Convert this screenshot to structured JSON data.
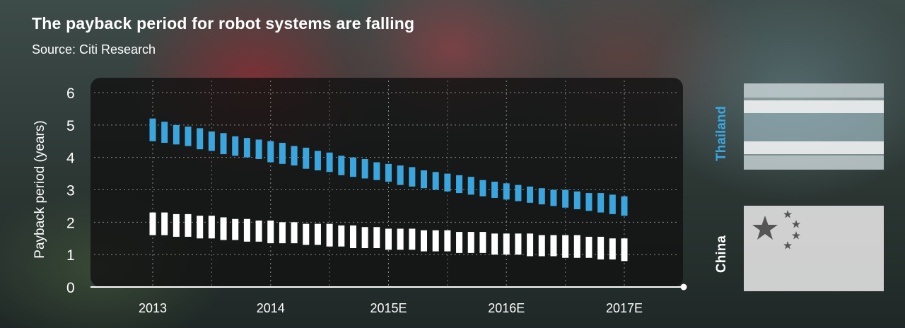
{
  "header": {
    "title": "The payback period for robot systems are falling",
    "subtitle": "Source: Citi Research"
  },
  "legend": {
    "thailand": "Thailand",
    "china": "China"
  },
  "colors": {
    "thailand": "#3aa6e0",
    "china": "#ffffff",
    "panel": "#121212"
  },
  "chart_data": {
    "type": "bar",
    "title": "The payback period for robot systems are falling",
    "ylabel": "Payback period (years)",
    "xlabel": "",
    "ylim": [
      0,
      6
    ],
    "yticks": [
      0,
      1,
      2,
      3,
      4,
      5,
      6
    ],
    "grid": true,
    "x_tick_labels": [
      "2013",
      "2014",
      "2015E",
      "2016E",
      "2017E"
    ],
    "bars_per_year": 10,
    "series": [
      {
        "name": "Thailand",
        "start": [
          5.2,
          5.1,
          5.0,
          4.95,
          4.9,
          4.8,
          4.75,
          4.65,
          4.6,
          4.55,
          4.5,
          4.45,
          4.35,
          4.3,
          4.2,
          4.15,
          4.05,
          4.0,
          3.95,
          3.85,
          3.8,
          3.75,
          3.7,
          3.6,
          3.55,
          3.5,
          3.45,
          3.4,
          3.3,
          3.25,
          3.2,
          3.15,
          3.1,
          3.05,
          3.0,
          3.0,
          2.95,
          2.9,
          2.9,
          2.85,
          2.8
        ],
        "end": [
          4.5,
          4.45,
          4.4,
          4.35,
          4.25,
          4.2,
          4.1,
          4.05,
          4.0,
          3.95,
          3.85,
          3.8,
          3.75,
          3.65,
          3.6,
          3.55,
          3.45,
          3.4,
          3.35,
          3.3,
          3.25,
          3.15,
          3.1,
          3.05,
          3.0,
          2.95,
          2.9,
          2.85,
          2.8,
          2.75,
          2.7,
          2.65,
          2.6,
          2.55,
          2.5,
          2.45,
          2.4,
          2.35,
          2.3,
          2.25,
          2.2
        ]
      },
      {
        "name": "China",
        "start": [
          2.3,
          2.3,
          2.25,
          2.25,
          2.2,
          2.2,
          2.15,
          2.1,
          2.1,
          2.05,
          2.05,
          2.0,
          2.0,
          1.95,
          1.95,
          1.95,
          1.9,
          1.9,
          1.85,
          1.85,
          1.8,
          1.8,
          1.8,
          1.75,
          1.75,
          1.75,
          1.7,
          1.7,
          1.7,
          1.65,
          1.65,
          1.65,
          1.65,
          1.6,
          1.6,
          1.6,
          1.6,
          1.55,
          1.55,
          1.5,
          1.5
        ],
        "end": [
          1.6,
          1.6,
          1.55,
          1.55,
          1.5,
          1.5,
          1.45,
          1.45,
          1.4,
          1.4,
          1.35,
          1.35,
          1.35,
          1.3,
          1.3,
          1.25,
          1.25,
          1.2,
          1.2,
          1.2,
          1.15,
          1.15,
          1.15,
          1.1,
          1.1,
          1.1,
          1.05,
          1.05,
          1.05,
          1.0,
          1.0,
          1.0,
          0.95,
          0.95,
          0.95,
          0.9,
          0.9,
          0.9,
          0.85,
          0.85,
          0.8
        ]
      }
    ]
  }
}
